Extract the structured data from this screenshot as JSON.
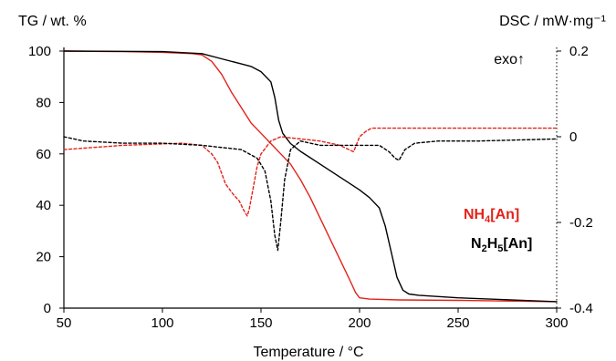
{
  "chart_data": {
    "type": "line",
    "xlabel": "Temperature / °C",
    "ylabel_left": "TG / wt. %",
    "ylabel_right": "DSC / mW·mg⁻¹",
    "xlim": [
      50,
      300
    ],
    "ylim_left": [
      0,
      100
    ],
    "ylim_right": [
      -0.4,
      0.2
    ],
    "x_ticks": [
      "50",
      "100",
      "150",
      "200",
      "250",
      "300"
    ],
    "y_left_ticks": [
      "0",
      "20",
      "40",
      "60",
      "80",
      "100"
    ],
    "y_right_ticks": [
      "-0.4",
      "-0.2",
      "0",
      "0.2"
    ],
    "annotation": "exo↑",
    "grid": false,
    "legend": {
      "placement": "right",
      "entries": [
        {
          "base": "NH",
          "sub1": "4",
          "mid": "[An]",
          "sub2": "",
          "tail": "",
          "color": "#e2231a"
        },
        {
          "base": "N",
          "sub1": "2",
          "mid": "H",
          "sub2": "5",
          "tail": "[An]",
          "color": "#000000"
        }
      ]
    },
    "series": [
      {
        "compound": "NH4[An]",
        "measure": "TG",
        "axis": "left",
        "style": "solid",
        "color": "#e2231a",
        "x": [
          50,
          80,
          100,
          115,
          120,
          125,
          130,
          135,
          140,
          145,
          150,
          155,
          160,
          165,
          170,
          175,
          180,
          185,
          190,
          195,
          198,
          200,
          205,
          220,
          250,
          300
        ],
        "y": [
          100,
          99.8,
          99.5,
          99,
          98.5,
          96,
          91,
          84,
          78,
          72,
          68,
          64,
          60,
          56,
          50,
          43,
          35,
          27,
          19,
          11,
          6,
          4,
          3.5,
          3.2,
          3,
          2.5
        ]
      },
      {
        "compound": "N2H5[An]",
        "measure": "TG",
        "axis": "left",
        "style": "solid",
        "color": "#000000",
        "x": [
          50,
          100,
          120,
          130,
          140,
          145,
          150,
          155,
          157,
          159,
          161,
          163,
          165,
          170,
          180,
          190,
          200,
          205,
          210,
          213,
          216,
          219,
          222,
          225,
          230,
          250,
          300
        ],
        "y": [
          100,
          99.8,
          99,
          97,
          95,
          94,
          92,
          88,
          82,
          73,
          68,
          66,
          64,
          61,
          56,
          51,
          46,
          43,
          39,
          32,
          22,
          12,
          7,
          5.5,
          5,
          4,
          2.5
        ]
      },
      {
        "compound": "NH4[An]",
        "measure": "DSC",
        "axis": "right",
        "style": "dashed",
        "color": "#e2231a",
        "x": [
          50,
          80,
          110,
          120,
          125,
          128,
          132,
          136,
          139,
          141,
          143,
          144,
          146,
          148,
          150,
          155,
          160,
          170,
          180,
          190,
          197,
          200,
          203,
          206,
          210,
          230,
          300
        ],
        "y": [
          -0.03,
          -0.02,
          -0.015,
          -0.02,
          -0.04,
          -0.06,
          -0.11,
          -0.135,
          -0.15,
          -0.17,
          -0.185,
          -0.17,
          -0.12,
          -0.07,
          -0.04,
          -0.01,
          0.0,
          -0.005,
          -0.01,
          -0.02,
          -0.035,
          0.0,
          0.012,
          0.02,
          0.02,
          0.02,
          0.02
        ]
      },
      {
        "compound": "N2H5[An]",
        "measure": "DSC",
        "axis": "right",
        "style": "dashed",
        "color": "#000000",
        "x": [
          50,
          60,
          80,
          100,
          120,
          140,
          148,
          152,
          155,
          157,
          158.5,
          160,
          162,
          165,
          170,
          180,
          200,
          210,
          215,
          218,
          220,
          223,
          228,
          240,
          260,
          300
        ],
        "y": [
          0.0,
          -0.01,
          -0.015,
          -0.015,
          -0.02,
          -0.03,
          -0.05,
          -0.08,
          -0.15,
          -0.23,
          -0.265,
          -0.2,
          -0.1,
          -0.03,
          -0.01,
          -0.02,
          -0.02,
          -0.02,
          -0.035,
          -0.05,
          -0.055,
          -0.03,
          -0.015,
          -0.01,
          -0.01,
          -0.005
        ]
      }
    ]
  }
}
